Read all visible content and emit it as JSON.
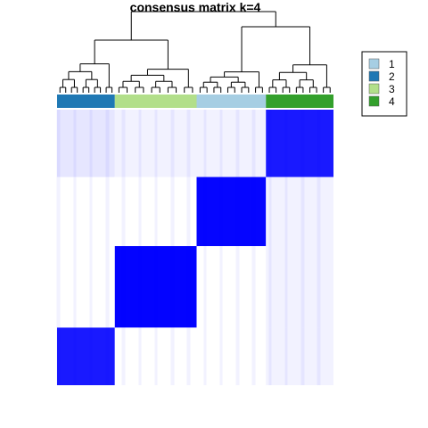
{
  "chart_data": {
    "type": "heatmap",
    "title": "consensus matrix k=4",
    "xlabel": "",
    "ylabel": "",
    "value_range": [
      0,
      1
    ],
    "color_low": "#FFFFFF",
    "color_high": "#0000FF",
    "dendrogram": "top",
    "annotation_bar": "top",
    "legend_position": "right",
    "legend": [
      {
        "label": "1",
        "color": "#A6CEE3"
      },
      {
        "label": "2",
        "color": "#1F78B4"
      },
      {
        "label": "3",
        "color": "#B2DF8A"
      },
      {
        "label": "4",
        "color": "#33A02C"
      }
    ],
    "column_order_groups": [
      "2",
      "3",
      "1",
      "4"
    ],
    "group_sizes": [
      65,
      92,
      78,
      76
    ],
    "row_order_groups": [
      "4",
      "1",
      "3",
      "2"
    ],
    "row_group_sizes": [
      76,
      78,
      92,
      65
    ],
    "block_values": [
      [
        0.1,
        0.05,
        0.05,
        0.9
      ],
      [
        0.0,
        0.0,
        0.98,
        0.05
      ],
      [
        0.0,
        0.99,
        0.0,
        0.05
      ],
      [
        0.9,
        0.0,
        0.0,
        0.05
      ]
    ]
  }
}
